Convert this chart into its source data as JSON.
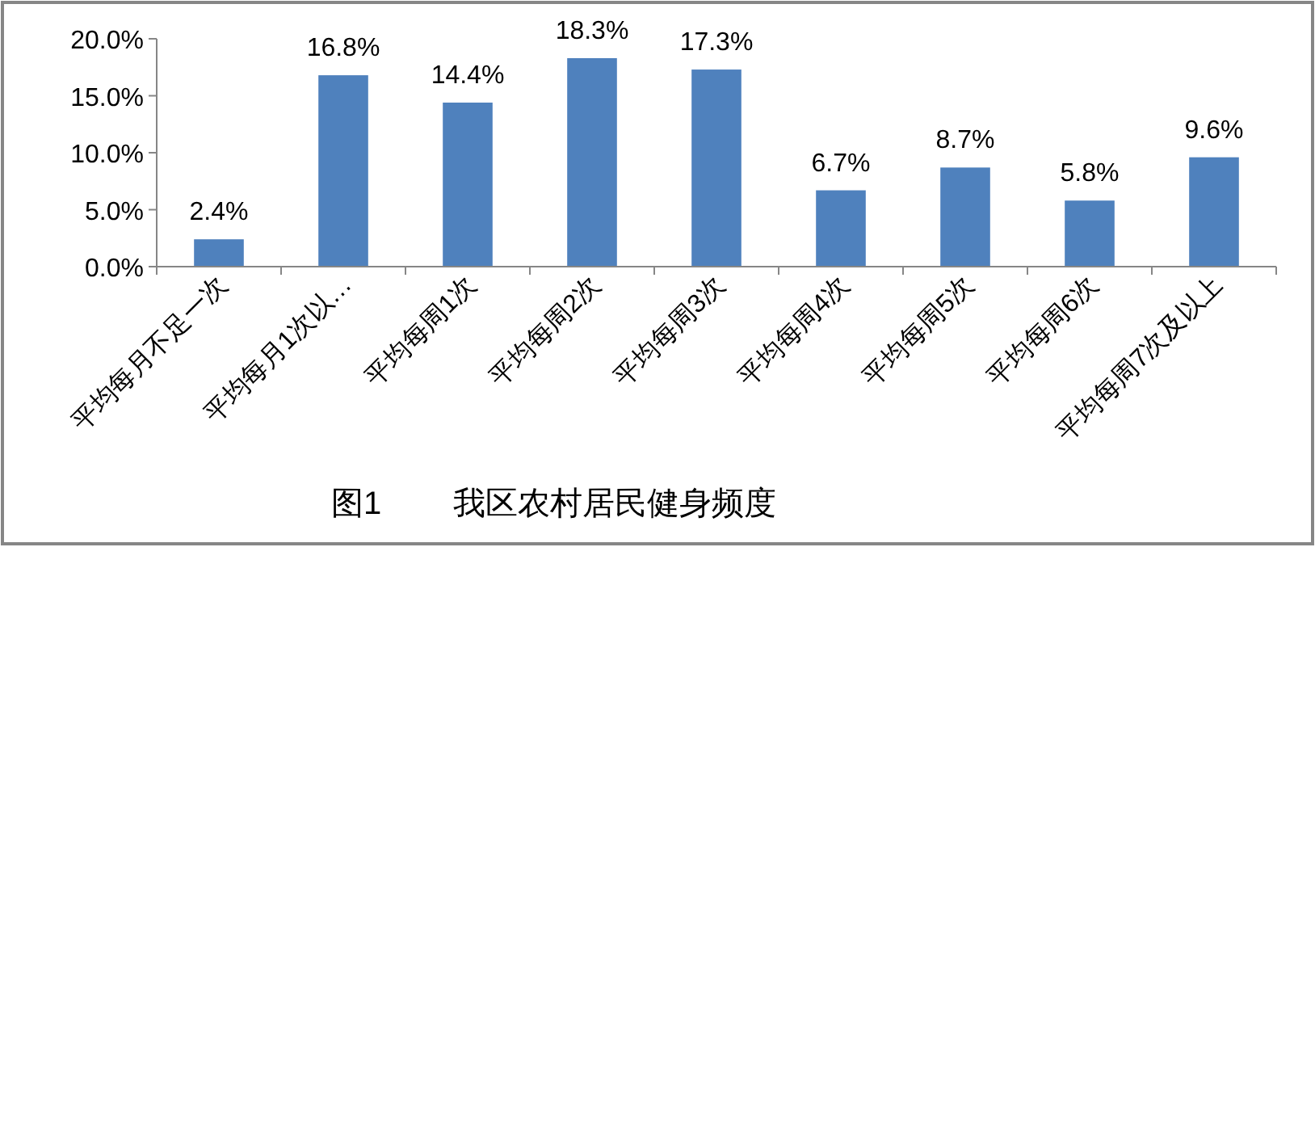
{
  "chart_data": {
    "type": "bar",
    "title": "图1        我区农村居民健身频度",
    "categories": [
      "平均每月不足一次",
      "平均每月1次以…",
      "平均每周1次",
      "平均每周2次",
      "平均每周3次",
      "平均每周4次",
      "平均每周5次",
      "平均每周6次",
      "平均每周7次及以上"
    ],
    "values": [
      2.4,
      16.8,
      14.4,
      18.3,
      17.3,
      6.7,
      8.7,
      5.8,
      9.6
    ],
    "value_labels": [
      "2.4%",
      "16.8%",
      "14.4%",
      "18.3%",
      "17.3%",
      "6.7%",
      "8.7%",
      "5.8%",
      "9.6%"
    ],
    "color": "#4f81bd",
    "ylim": [
      0,
      20
    ],
    "yticks": [
      {
        "value": 0,
        "label": "0.0%"
      },
      {
        "value": 5,
        "label": "5.0%"
      },
      {
        "value": 10,
        "label": "10.0%"
      },
      {
        "value": 15,
        "label": "15.0%"
      },
      {
        "value": 20,
        "label": "20.0%"
      }
    ],
    "grid": false
  }
}
